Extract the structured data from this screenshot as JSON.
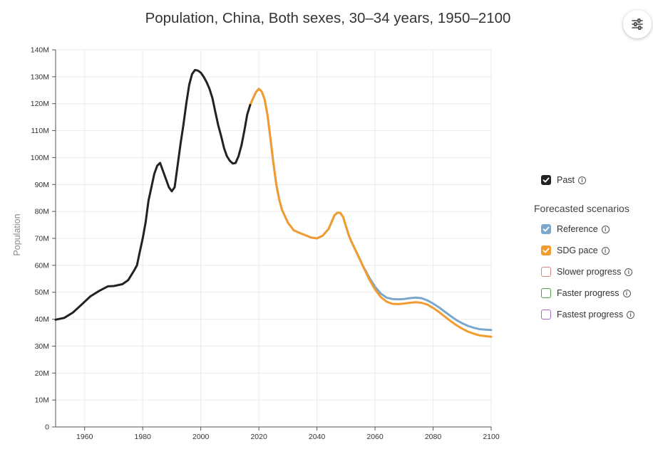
{
  "title": "Population, China, Both sexes, 30–34 years, 1950–2100",
  "settings": {
    "icon": "sliders-icon"
  },
  "legend": {
    "past": {
      "label": "Past",
      "checked": true,
      "color": "#222222"
    },
    "heading": "Forecasted scenarios",
    "scenarios": [
      {
        "label": "Reference",
        "checked": true,
        "color": "#7ba7cc"
      },
      {
        "label": "SDG pace",
        "checked": true,
        "color": "#f29c2f"
      },
      {
        "label": "Slower progress",
        "checked": false,
        "color": "#d9857f"
      },
      {
        "label": "Faster progress",
        "checked": false,
        "color": "#4d9a4d"
      },
      {
        "label": "Fastest progress",
        "checked": false,
        "color": "#a36bc4"
      }
    ]
  },
  "chart_data": {
    "type": "line",
    "title": "Population, China, Both sexes, 30–34 years, 1950–2100",
    "xlabel": "",
    "ylabel": "Population",
    "xlim": [
      1950,
      2100
    ],
    "ylim": [
      0,
      140000000
    ],
    "x_ticks": [
      1960,
      1980,
      2000,
      2020,
      2040,
      2060,
      2080,
      2100
    ],
    "y_ticks": [
      0,
      10000000,
      20000000,
      30000000,
      40000000,
      50000000,
      60000000,
      70000000,
      80000000,
      90000000,
      100000000,
      110000000,
      120000000,
      130000000,
      140000000
    ],
    "y_tick_labels": [
      "0",
      "10M",
      "20M",
      "30M",
      "40M",
      "50M",
      "60M",
      "70M",
      "80M",
      "90M",
      "100M",
      "110M",
      "120M",
      "130M",
      "140M"
    ],
    "grid": true,
    "series": [
      {
        "name": "Past",
        "color": "#222222",
        "x": [
          1950,
          1953,
          1956,
          1959,
          1962,
          1965,
          1968,
          1970,
          1973,
          1975,
          1977,
          1978,
          1979,
          1980,
          1981,
          1982,
          1983,
          1984,
          1985,
          1986,
          1987,
          1988,
          1989,
          1990,
          1991,
          1992,
          1993,
          1994,
          1995,
          1996,
          1997,
          1998,
          1999,
          2000,
          2001,
          2002,
          2003,
          2004,
          2005,
          2006,
          2007,
          2008,
          2009,
          2010,
          2011,
          2012,
          2013,
          2014,
          2015,
          2016,
          2017
        ],
        "y": [
          39800000,
          40500000,
          42500000,
          45500000,
          48500000,
          50500000,
          52200000,
          52300000,
          53000000,
          54500000,
          58000000,
          60000000,
          65000000,
          70000000,
          76000000,
          84000000,
          89000000,
          94000000,
          97000000,
          98000000,
          95000000,
          92000000,
          89000000,
          87500000,
          89000000,
          97000000,
          105000000,
          112000000,
          120000000,
          127000000,
          131000000,
          132500000,
          132300000,
          131500000,
          130000000,
          128000000,
          125500000,
          122000000,
          117000000,
          112000000,
          108000000,
          103500000,
          100500000,
          98800000,
          97800000,
          98000000,
          100500000,
          104500000,
          110000000,
          116000000,
          119500000
        ]
      },
      {
        "name": "Reference",
        "color": "#7ba7cc",
        "x": [
          2017,
          2018,
          2019,
          2020,
          2021,
          2022,
          2023,
          2024,
          2025,
          2026,
          2027,
          2028,
          2030,
          2032,
          2034,
          2036,
          2038,
          2040,
          2042,
          2044,
          2045,
          2046,
          2047,
          2048,
          2049,
          2050,
          2051,
          2052,
          2054,
          2056,
          2058,
          2060,
          2062,
          2064,
          2066,
          2068,
          2070,
          2072,
          2074,
          2076,
          2078,
          2080,
          2082,
          2084,
          2086,
          2088,
          2090,
          2092,
          2094,
          2096,
          2098,
          2100
        ],
        "y": [
          119500000,
          122000000,
          124300000,
          125500000,
          124500000,
          121500000,
          115500000,
          107000000,
          98000000,
          90000000,
          84500000,
          80500000,
          75800000,
          73000000,
          72000000,
          71200000,
          70300000,
          70000000,
          71000000,
          73500000,
          76000000,
          78500000,
          79500000,
          79500000,
          78000000,
          74500000,
          71000000,
          68500000,
          64000000,
          59500000,
          55500000,
          52000000,
          49500000,
          48000000,
          47500000,
          47400000,
          47500000,
          47800000,
          48000000,
          47800000,
          47000000,
          45800000,
          44400000,
          42800000,
          41200000,
          39700000,
          38500000,
          37500000,
          36800000,
          36300000,
          36100000,
          36000000
        ]
      },
      {
        "name": "SDG pace",
        "color": "#f29c2f",
        "x": [
          2017,
          2018,
          2019,
          2020,
          2021,
          2022,
          2023,
          2024,
          2025,
          2026,
          2027,
          2028,
          2030,
          2032,
          2034,
          2036,
          2038,
          2040,
          2042,
          2044,
          2045,
          2046,
          2047,
          2048,
          2049,
          2050,
          2051,
          2052,
          2054,
          2056,
          2058,
          2060,
          2062,
          2064,
          2066,
          2068,
          2070,
          2072,
          2074,
          2076,
          2078,
          2080,
          2082,
          2084,
          2086,
          2088,
          2090,
          2092,
          2094,
          2096,
          2098,
          2100
        ],
        "y": [
          119500000,
          122000000,
          124300000,
          125500000,
          124500000,
          121500000,
          115500000,
          107000000,
          98000000,
          90000000,
          84500000,
          80500000,
          75800000,
          73000000,
          72000000,
          71200000,
          70300000,
          70000000,
          71000000,
          73500000,
          76000000,
          78500000,
          79500000,
          79500000,
          78000000,
          74500000,
          71000000,
          68500000,
          64000000,
          59300000,
          54800000,
          51000000,
          48200000,
          46500000,
          45700000,
          45600000,
          45800000,
          46100000,
          46300000,
          46100000,
          45400000,
          44200000,
          42700000,
          41000000,
          39300000,
          37800000,
          36500000,
          35400000,
          34600000,
          34000000,
          33700000,
          33500000
        ]
      }
    ]
  }
}
